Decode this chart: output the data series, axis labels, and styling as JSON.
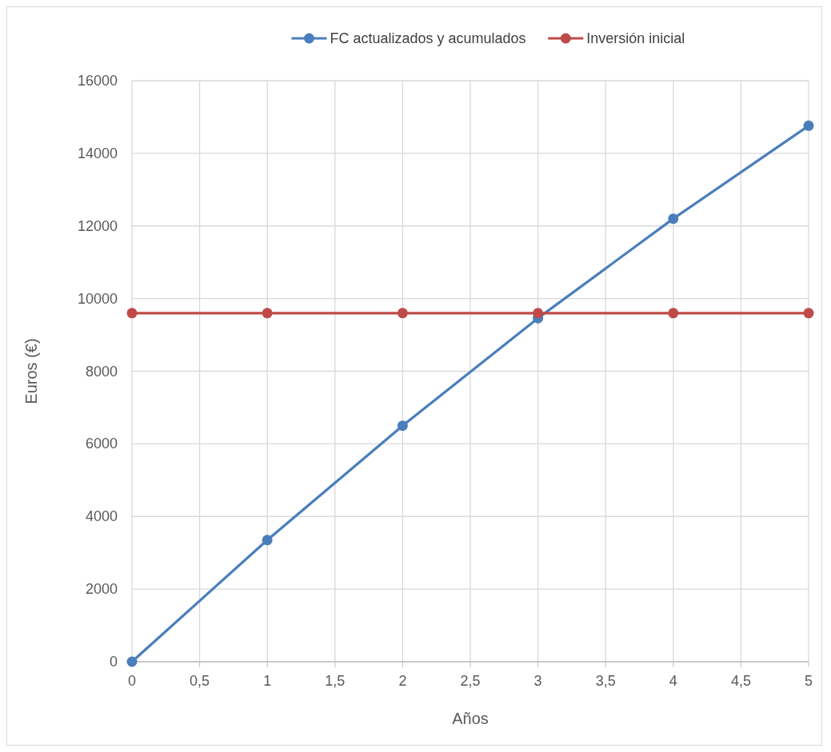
{
  "chart_data": {
    "type": "line",
    "xlabel": "Años",
    "ylabel": "Euros (€)",
    "x": [
      0,
      1,
      2,
      3,
      4,
      5
    ],
    "series": [
      {
        "name": "FC actualizados y acumulados",
        "color": "#4a7ebb",
        "values": [
          0,
          3350,
          6500,
          9460,
          12200,
          14760
        ]
      },
      {
        "name": "Inversión inicial",
        "color": "#be4b48",
        "values": [
          9600,
          9600,
          9600,
          9600,
          9600,
          9600
        ]
      }
    ],
    "xlim": [
      0,
      5
    ],
    "xticks": [
      0,
      {
        "value": 0.5,
        "label": "0,5"
      },
      1,
      {
        "value": 1.5,
        "label": "1,5"
      },
      2,
      {
        "value": 2.5,
        "label": "2,5"
      },
      3,
      {
        "value": 3.5,
        "label": "3,5"
      },
      4,
      {
        "value": 4.5,
        "label": "4,5"
      },
      5
    ],
    "ylim": [
      0,
      16000
    ],
    "yticks": [
      0,
      2000,
      4000,
      6000,
      8000,
      10000,
      12000,
      14000,
      16000
    ],
    "grid": true,
    "legend": "top",
    "marker": "circle",
    "line_style": "solid"
  }
}
